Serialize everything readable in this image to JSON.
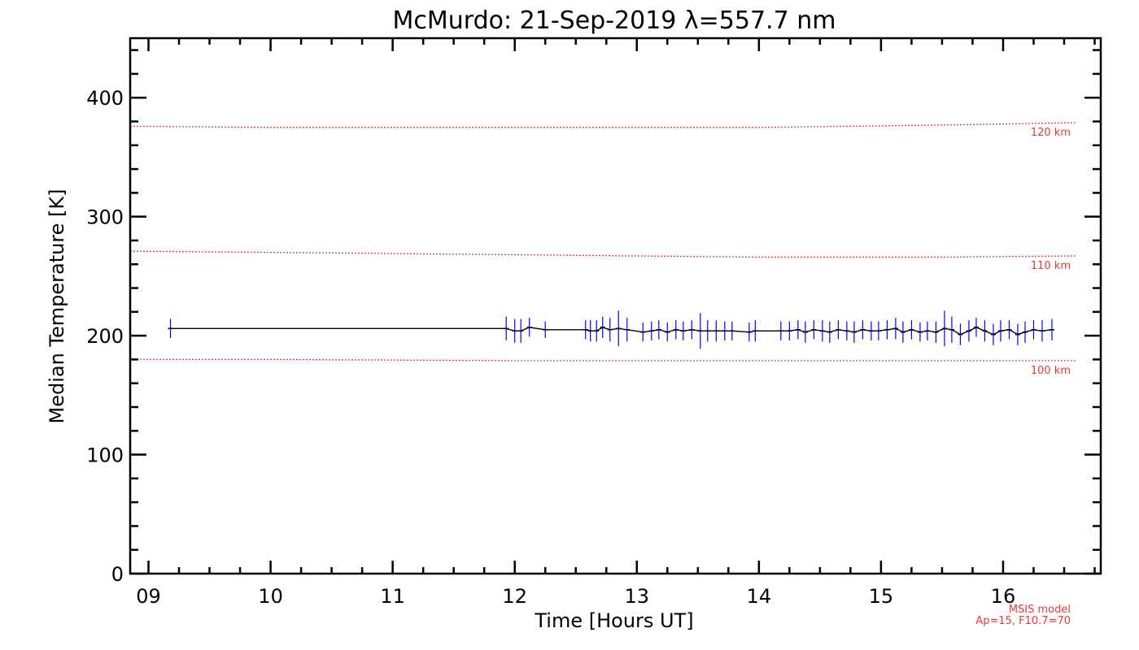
{
  "chart_data": {
    "type": "line",
    "title": "McMurdo: 21-Sep-2019 λ=557.7 nm",
    "xlabel": "Time [Hours UT]",
    "ylabel": "Median Temperature [K]",
    "xlim": [
      8.85,
      16.8
    ],
    "ylim": [
      0,
      450
    ],
    "x_ticks": [
      "09",
      "10",
      "11",
      "12",
      "13",
      "14",
      "15",
      "16"
    ],
    "x_tick_values": [
      9,
      10,
      11,
      12,
      13,
      14,
      15,
      16
    ],
    "y_ticks": [
      "0",
      "100",
      "200",
      "300",
      "400"
    ],
    "y_tick_values": [
      0,
      100,
      200,
      300,
      400
    ],
    "colors": {
      "series": "#000000",
      "error": "#0000ff",
      "msis": "#e8383a",
      "axes": "#000000"
    },
    "series": [
      {
        "name": "Median Temperature",
        "x": [
          9.18,
          11.93,
          12.0,
          12.05,
          12.12,
          12.25,
          12.58,
          12.62,
          12.67,
          12.72,
          12.78,
          12.85,
          12.92,
          13.05,
          13.12,
          13.18,
          13.25,
          13.32,
          13.38,
          13.45,
          13.52,
          13.58,
          13.65,
          13.72,
          13.78,
          13.92,
          13.97,
          14.18,
          14.25,
          14.32,
          14.38,
          14.45,
          14.52,
          14.58,
          14.65,
          14.72,
          14.78,
          14.85,
          14.92,
          14.98,
          15.05,
          15.12,
          15.18,
          15.25,
          15.32,
          15.38,
          15.45,
          15.52,
          15.58,
          15.65,
          15.72,
          15.78,
          15.85,
          15.92,
          15.98,
          16.05,
          16.12,
          16.18,
          16.25,
          16.32,
          16.4
        ],
        "y": [
          206,
          206,
          204,
          204,
          207,
          205,
          205,
          204,
          204,
          207,
          205,
          206,
          205,
          203,
          204,
          205,
          203,
          205,
          204,
          205,
          204,
          204,
          204,
          204,
          204,
          203,
          204,
          204,
          204,
          205,
          203,
          205,
          204,
          203,
          205,
          204,
          203,
          205,
          204,
          204,
          205,
          206,
          203,
          205,
          203,
          204,
          203,
          206,
          205,
          201,
          204,
          207,
          204,
          201,
          204,
          205,
          201,
          203,
          205,
          204,
          205
        ],
        "err": [
          8,
          10,
          10,
          10,
          8,
          7,
          8,
          9,
          9,
          9,
          10,
          15,
          10,
          8,
          8,
          8,
          8,
          8,
          8,
          8,
          15,
          9,
          9,
          8,
          8,
          8,
          9,
          8,
          8,
          8,
          9,
          8,
          9,
          9,
          8,
          8,
          9,
          8,
          8,
          8,
          8,
          9,
          9,
          8,
          8,
          8,
          9,
          15,
          11,
          9,
          9,
          8,
          9,
          9,
          9,
          8,
          9,
          9,
          8,
          9,
          9
        ]
      }
    ],
    "reference_lines": [
      {
        "name": "120 km",
        "label": "120 km",
        "x": [
          8.85,
          10.0,
          12.0,
          14.0,
          15.5,
          16.6
        ],
        "y": [
          376,
          375,
          375,
          375,
          377,
          379
        ]
      },
      {
        "name": "110 km",
        "label": "110 km",
        "x": [
          8.85,
          10.0,
          12.0,
          14.0,
          15.5,
          16.6
        ],
        "y": [
          271,
          270,
          268,
          266,
          266,
          267
        ]
      },
      {
        "name": "100 km",
        "label": "100 km",
        "x": [
          8.85,
          10.0,
          12.0,
          14.0,
          15.5,
          16.6
        ],
        "y": [
          180,
          180,
          179,
          179,
          179,
          179
        ]
      }
    ],
    "model_note_line1": "MSIS model",
    "model_note_line2": "Ap=15, F10.7=70"
  }
}
